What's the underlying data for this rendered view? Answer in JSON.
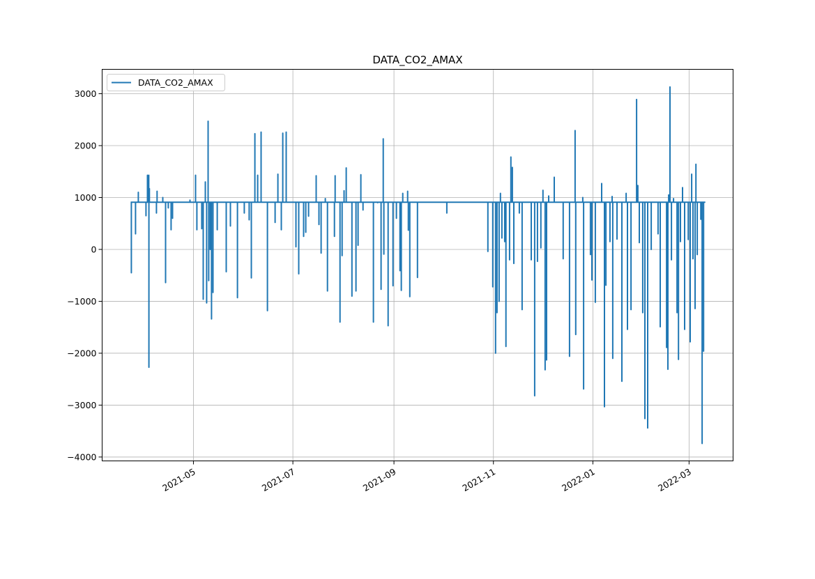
{
  "chart_data": {
    "type": "line",
    "title": "DATA_CO2_AMAX",
    "xlabel": "",
    "ylabel": "",
    "x_unit": "days since 2021-05-01",
    "xlim": [
      -56,
      331
    ],
    "ylim": [
      -4075,
      3470
    ],
    "grid": true,
    "legend": {
      "placement": "top-left",
      "entries": [
        "DATA_CO2_AMAX"
      ]
    },
    "color": "#1f77b4",
    "x_ticks": [
      {
        "value": 0,
        "label": "2021-05"
      },
      {
        "value": 61,
        "label": "2021-07"
      },
      {
        "value": 123,
        "label": "2021-09"
      },
      {
        "value": 184,
        "label": "2021-11"
      },
      {
        "value": 245,
        "label": "2022-01"
      },
      {
        "value": 304,
        "label": "2022-03"
      }
    ],
    "y_ticks": [
      {
        "value": 3000,
        "label": "3000"
      },
      {
        "value": 2000,
        "label": "2000"
      },
      {
        "value": 1000,
        "label": "1000"
      },
      {
        "value": 0,
        "label": "0"
      },
      {
        "value": -1000,
        "label": "−1000"
      },
      {
        "value": -2000,
        "label": "−2000"
      },
      {
        "value": -3000,
        "label": "−3000"
      },
      {
        "value": -4000,
        "label": "−4000"
      }
    ],
    "series": [
      {
        "name": "DATA_CO2_AMAX",
        "baseline": 910,
        "x_start": -38.5,
        "x_end": 314,
        "spikes": [
          [
            -38.1,
            -450
          ],
          [
            -35.5,
            300
          ],
          [
            -33.8,
            1100
          ],
          [
            -29.1,
            650
          ],
          [
            -28.2,
            1430
          ],
          [
            -27.4,
            1430
          ],
          [
            -27.3,
            -2270
          ],
          [
            -27.0,
            1170
          ],
          [
            -22.7,
            700
          ],
          [
            -22.3,
            1120
          ],
          [
            -18.8,
            1000
          ],
          [
            -17.1,
            -640
          ],
          [
            -15.4,
            800
          ],
          [
            -13.7,
            380
          ],
          [
            -12.8,
            600
          ],
          [
            -2.1,
            950
          ],
          [
            1.3,
            1430
          ],
          [
            2.1,
            380
          ],
          [
            5.1,
            400
          ],
          [
            6.0,
            -960
          ],
          [
            7.3,
            1300
          ],
          [
            8.1,
            -1030
          ],
          [
            9.0,
            2470
          ],
          [
            9.4,
            -600
          ],
          [
            10.3,
            0
          ],
          [
            11.1,
            -1340
          ],
          [
            12.0,
            -830
          ],
          [
            14.6,
            380
          ],
          [
            20.1,
            -430
          ],
          [
            22.7,
            450
          ],
          [
            27.0,
            -930
          ],
          [
            31.2,
            700
          ],
          [
            34.2,
            570
          ],
          [
            35.5,
            -550
          ],
          [
            37.7,
            2230
          ],
          [
            39.4,
            1430
          ],
          [
            41.5,
            2260
          ],
          [
            45.4,
            -1180
          ],
          [
            50.1,
            520
          ],
          [
            51.8,
            1450
          ],
          [
            53.9,
            380
          ],
          [
            54.8,
            2240
          ],
          [
            56.9,
            2260
          ],
          [
            62.9,
            50
          ],
          [
            64.6,
            -470
          ],
          [
            67.6,
            250
          ],
          [
            68.9,
            330
          ],
          [
            70.6,
            640
          ],
          [
            75.3,
            1420
          ],
          [
            77.0,
            480
          ],
          [
            78.3,
            -70
          ],
          [
            80.9,
            980
          ],
          [
            82.2,
            -800
          ],
          [
            86.5,
            250
          ],
          [
            86.9,
            1420
          ],
          [
            89.9,
            -1400
          ],
          [
            91.2,
            -120
          ],
          [
            92.4,
            1130
          ],
          [
            93.7,
            1570
          ],
          [
            97.2,
            -900
          ],
          [
            99.7,
            -800
          ],
          [
            101.0,
            80
          ],
          [
            102.7,
            1440
          ],
          [
            104.0,
            760
          ],
          [
            110.4,
            -1400
          ],
          [
            113.0,
            900
          ],
          [
            115.1,
            -770
          ],
          [
            116.4,
            2130
          ],
          [
            116.8,
            -90
          ],
          [
            119.4,
            -1470
          ],
          [
            122.4,
            -700
          ],
          [
            124.5,
            600
          ],
          [
            126.7,
            -410
          ],
          [
            127.5,
            -790
          ],
          [
            128.4,
            1080
          ],
          [
            131.4,
            1120
          ],
          [
            131.8,
            370
          ],
          [
            132.7,
            -910
          ],
          [
            137.4,
            -540
          ],
          [
            155.4,
            700
          ],
          [
            180.6,
            -40
          ],
          [
            183.6,
            -720
          ],
          [
            185.3,
            -2000
          ],
          [
            186.2,
            -1220
          ],
          [
            187.5,
            -1000
          ],
          [
            188.3,
            1080
          ],
          [
            189.2,
            220
          ],
          [
            190.9,
            150
          ],
          [
            191.7,
            -1870
          ],
          [
            193.9,
            -200
          ],
          [
            194.7,
            1780
          ],
          [
            195.6,
            1580
          ],
          [
            196.5,
            -270
          ],
          [
            199.9,
            700
          ],
          [
            201.6,
            -1160
          ],
          [
            207.2,
            -200
          ],
          [
            209.3,
            -2820
          ],
          [
            211.0,
            -230
          ],
          [
            213.1,
            30
          ],
          [
            214.4,
            1140
          ],
          [
            215.7,
            -2320
          ],
          [
            216.6,
            -2130
          ],
          [
            217.9,
            1030
          ],
          [
            221.3,
            1390
          ],
          [
            226.8,
            -180
          ],
          [
            230.7,
            -2060
          ],
          [
            234.1,
            2290
          ],
          [
            234.5,
            -1640
          ],
          [
            238.8,
            1000
          ],
          [
            239.3,
            -2690
          ],
          [
            243.5,
            -100
          ],
          [
            244.4,
            -590
          ],
          [
            246.5,
            -1020
          ],
          [
            250.4,
            1270
          ],
          [
            252.1,
            -3030
          ],
          [
            253.0,
            -690
          ],
          [
            255.5,
            150
          ],
          [
            256.8,
            1020
          ],
          [
            257.2,
            -2100
          ],
          [
            259.8,
            200
          ],
          [
            262.8,
            -2540
          ],
          [
            265.4,
            1080
          ],
          [
            266.2,
            -1540
          ],
          [
            268.4,
            -1160
          ],
          [
            271.8,
            2890
          ],
          [
            272.6,
            1230
          ],
          [
            273.5,
            130
          ],
          [
            275.6,
            -1220
          ],
          [
            276.9,
            -3260
          ],
          [
            278.6,
            -3440
          ],
          [
            280.8,
            0
          ],
          [
            285.0,
            300
          ],
          [
            286.3,
            -1490
          ],
          [
            290.2,
            -1890
          ],
          [
            291.0,
            -2310
          ],
          [
            291.5,
            1050
          ],
          [
            292.3,
            3130
          ],
          [
            293.2,
            -200
          ],
          [
            294.5,
            980
          ],
          [
            296.6,
            -1220
          ],
          [
            297.5,
            -2120
          ],
          [
            298.7,
            150
          ],
          [
            300.0,
            1190
          ],
          [
            301.3,
            -1540
          ],
          [
            303.5,
            190
          ],
          [
            304.7,
            -1780
          ],
          [
            305.6,
            1450
          ],
          [
            306.4,
            -180
          ],
          [
            307.7,
            -1140
          ],
          [
            308.2,
            1640
          ],
          [
            309.0,
            -100
          ],
          [
            311.2,
            580
          ],
          [
            312.0,
            -3740
          ],
          [
            312.9,
            -1960
          ]
        ]
      }
    ]
  }
}
